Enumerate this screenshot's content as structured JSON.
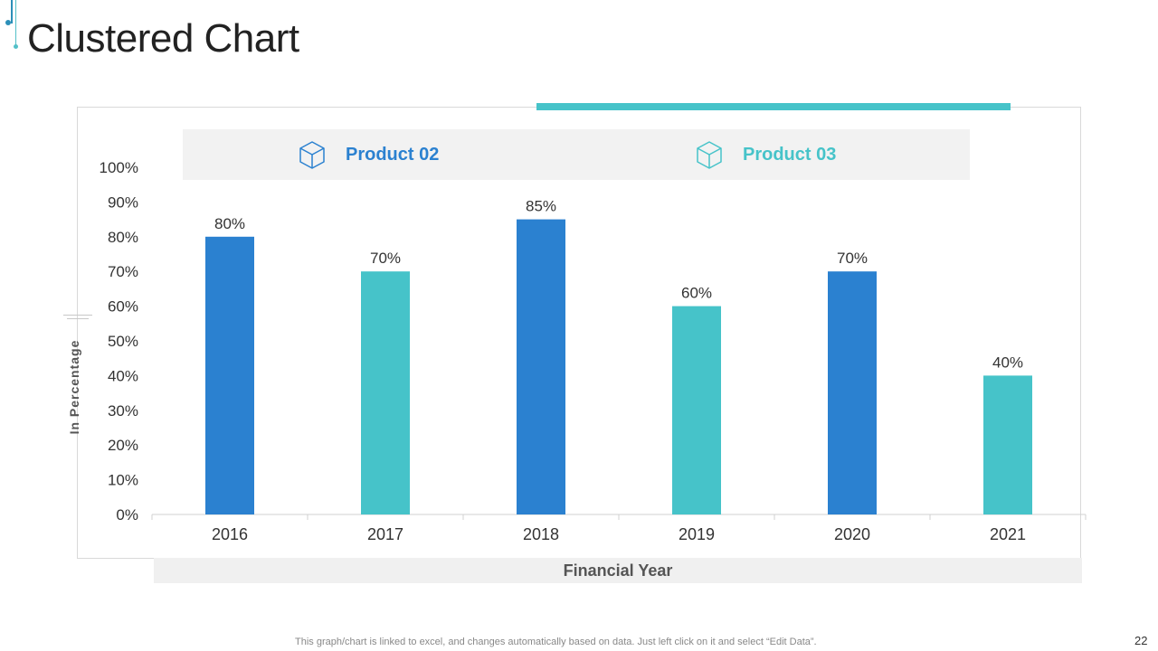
{
  "slide": {
    "title": "Clustered Chart",
    "footnote": "This graph/chart is linked to excel, and changes automatically based on data. Just left click on it and select “Edit Data”.",
    "page_number": "22"
  },
  "legend": {
    "items": [
      {
        "label": "Product 02",
        "color": "#2b81d0",
        "icon": "cube-icon"
      },
      {
        "label": "Product 03",
        "color": "#46c3c9",
        "icon": "cube-icon"
      }
    ]
  },
  "colors": {
    "product_02": "#2b81d0",
    "product_03": "#46c3c9",
    "accent": "#46c3c9",
    "title_accent": "#2b8fb8"
  },
  "chart_data": {
    "type": "bar",
    "title": "Clustered Chart",
    "xlabel": "Financial Year",
    "ylabel": "In Percentage",
    "ylim": [
      0,
      100
    ],
    "yticks": [
      "0%",
      "10%",
      "20%",
      "30%",
      "40%",
      "50%",
      "60%",
      "70%",
      "80%",
      "90%",
      "100%"
    ],
    "categories": [
      "2016",
      "2017",
      "2018",
      "2019",
      "2020",
      "2021"
    ],
    "values": [
      80,
      70,
      85,
      60,
      70,
      40
    ],
    "value_labels": [
      "80%",
      "70%",
      "85%",
      "60%",
      "70%",
      "40%"
    ],
    "series_of_bar": [
      "Product 02",
      "Product 03",
      "Product 02",
      "Product 03",
      "Product 02",
      "Product 03"
    ],
    "legend_position": "top",
    "grid": false
  }
}
